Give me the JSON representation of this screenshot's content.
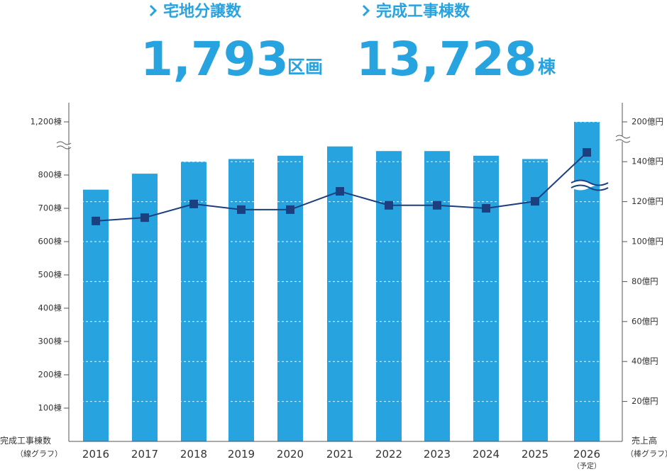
{
  "highlights": [
    {
      "label": "宅地分譲数",
      "value": "1,793",
      "unit": "区画"
    },
    {
      "label": "完成工事棟数",
      "value": "13,728",
      "unit": "棟"
    }
  ],
  "chart_data": {
    "type": "bar_line",
    "categories": [
      "2016",
      "2017",
      "2018",
      "2019",
      "2020",
      "2021",
      "2022",
      "2023",
      "2024",
      "2025",
      "2026"
    ],
    "category_note": {
      "category": "2026",
      "text": "（予定）"
    },
    "y_axis_title": [
      "完成工事棟数",
      "（線グラフ）"
    ],
    "y2_axis_title": [
      "売上高",
      "（棒グラフ）"
    ],
    "ylim": [
      0,
      1200
    ],
    "yticks": [
      {
        "value": 100,
        "label": "100棟"
      },
      {
        "value": 200,
        "label": "200棟"
      },
      {
        "value": 300,
        "label": "300棟"
      },
      {
        "value": 400,
        "label": "400棟"
      },
      {
        "value": 500,
        "label": "500棟"
      },
      {
        "value": 600,
        "label": "600棟"
      },
      {
        "value": 700,
        "label": "700棟"
      },
      {
        "value": 800,
        "label": "800棟"
      },
      {
        "value": 1200,
        "label": "1,200棟"
      }
    ],
    "y2lim": [
      0,
      200
    ],
    "y2ticks": [
      {
        "value": 20,
        "label": "20億円"
      },
      {
        "value": 40,
        "label": "40億円"
      },
      {
        "value": 60,
        "label": "60億円"
      },
      {
        "value": 80,
        "label": "80億円"
      },
      {
        "value": 100,
        "label": "100億円"
      },
      {
        "value": 120,
        "label": "120億円"
      },
      {
        "value": 140,
        "label": "140億円"
      },
      {
        "value": 200,
        "label": "200億円"
      }
    ],
    "series": [
      {
        "name": "売上高",
        "type": "bar",
        "axis": "y2",
        "color": "#27a3e0",
        "values": [
          126,
          134,
          140,
          144,
          149,
          163,
          156,
          156,
          149,
          144,
          200
        ]
      },
      {
        "name": "完成工事棟数",
        "type": "line",
        "axis": "y",
        "color": "#1b3f7f",
        "values": [
          662,
          672,
          713,
          696,
          696,
          751,
          709,
          709,
          700,
          721,
          970
        ]
      }
    ]
  }
}
